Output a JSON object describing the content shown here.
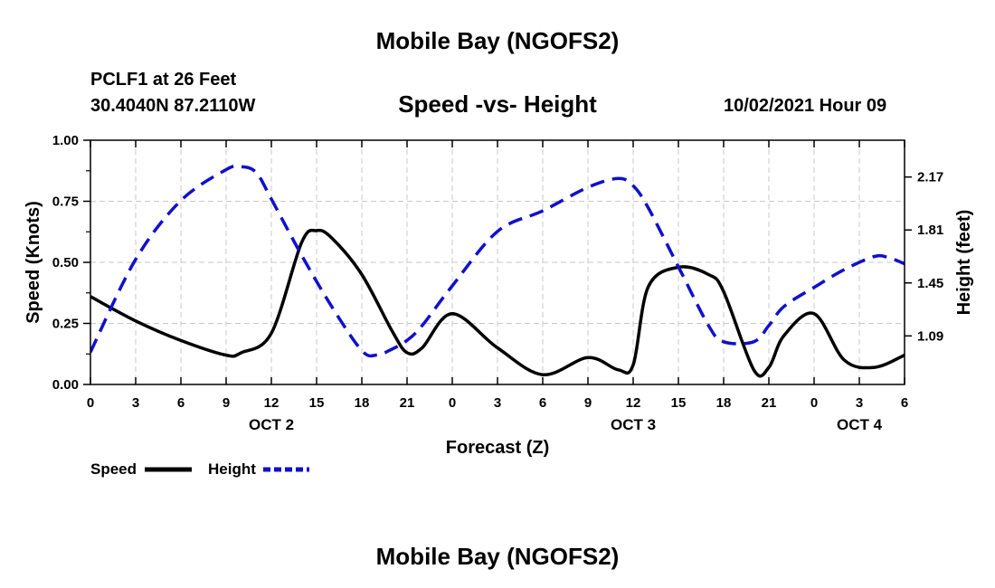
{
  "header": {
    "title": "Mobile Bay (NGOFS2)",
    "station": "PCLF1 at 26 Feet",
    "coords": "30.4040N  87.2110W",
    "subtitle": "Speed -vs- Height",
    "datetime": "10/02/2021 Hour 09"
  },
  "footer": {
    "title": "Mobile Bay (NGOFS2)"
  },
  "colors": {
    "speed": "#000000",
    "height": "#1010cc",
    "grid": "#c8c8c8"
  },
  "chart_data": {
    "type": "line",
    "title": "Speed -vs- Height",
    "xlabel": "Forecast (Z)",
    "ylabel": "Speed (Knots)",
    "y2label": "Height (feet)",
    "xlim": [
      0,
      54
    ],
    "ylim": [
      0,
      1.0
    ],
    "y2lim": [
      0.76,
      2.42
    ],
    "x_ticks": [
      0,
      3,
      6,
      9,
      12,
      15,
      18,
      21,
      24,
      27,
      30,
      33,
      36,
      39,
      42,
      45,
      48,
      51,
      54
    ],
    "x_tick_labels": [
      "0",
      "3",
      "6",
      "9",
      "12",
      "15",
      "18",
      "21",
      "0",
      "3",
      "6",
      "9",
      "12",
      "15",
      "18",
      "21",
      "0",
      "3",
      "6"
    ],
    "date_labels": [
      {
        "x": 12,
        "label": "OCT 2"
      },
      {
        "x": 36,
        "label": "OCT 3"
      },
      {
        "x": 51,
        "label": "OCT 4"
      }
    ],
    "y_ticks": [
      0,
      0.25,
      0.5,
      0.75,
      1.0
    ],
    "y_tick_labels": [
      "0.00",
      "0.25",
      "0.50",
      "0.75",
      "1.00"
    ],
    "y2_ticks": [
      1.09,
      1.45,
      1.81,
      2.17
    ],
    "y2_tick_labels": [
      "1.09",
      "1.45",
      "1.81",
      "2.17"
    ],
    "grid": true,
    "legend": {
      "placement": "bottom-left",
      "entries": [
        "Speed",
        "Height"
      ]
    },
    "series": [
      {
        "name": "Speed",
        "axis": "left",
        "style": "solid",
        "x": [
          0,
          3,
          6,
          9,
          10,
          12,
          14,
          15,
          16,
          18,
          20,
          21,
          22,
          24,
          27,
          30,
          33,
          35,
          36,
          37,
          39,
          41,
          42,
          44,
          45,
          46,
          48,
          50,
          52,
          54
        ],
        "y": [
          0.36,
          0.26,
          0.18,
          0.12,
          0.13,
          0.21,
          0.58,
          0.63,
          0.6,
          0.45,
          0.22,
          0.13,
          0.15,
          0.29,
          0.15,
          0.04,
          0.11,
          0.06,
          0.08,
          0.4,
          0.48,
          0.45,
          0.38,
          0.06,
          0.07,
          0.2,
          0.29,
          0.1,
          0.07,
          0.12
        ]
      },
      {
        "name": "Height",
        "axis": "right",
        "style": "dashed",
        "x": [
          0,
          3,
          6,
          9,
          10,
          11,
          12,
          14,
          16,
          18,
          19,
          20,
          21,
          22,
          24,
          27,
          30,
          33,
          35,
          36,
          37,
          39,
          41,
          42,
          44,
          45,
          46,
          48,
          50,
          52,
          53,
          54
        ],
        "y": [
          0.98,
          1.61,
          2.01,
          2.22,
          2.24,
          2.2,
          2.02,
          1.64,
          1.29,
          0.99,
          0.96,
          1.0,
          1.06,
          1.16,
          1.43,
          1.8,
          1.94,
          2.1,
          2.16,
          2.11,
          1.96,
          1.56,
          1.16,
          1.05,
          1.05,
          1.16,
          1.29,
          1.42,
          1.54,
          1.63,
          1.62,
          1.58
        ]
      }
    ]
  }
}
